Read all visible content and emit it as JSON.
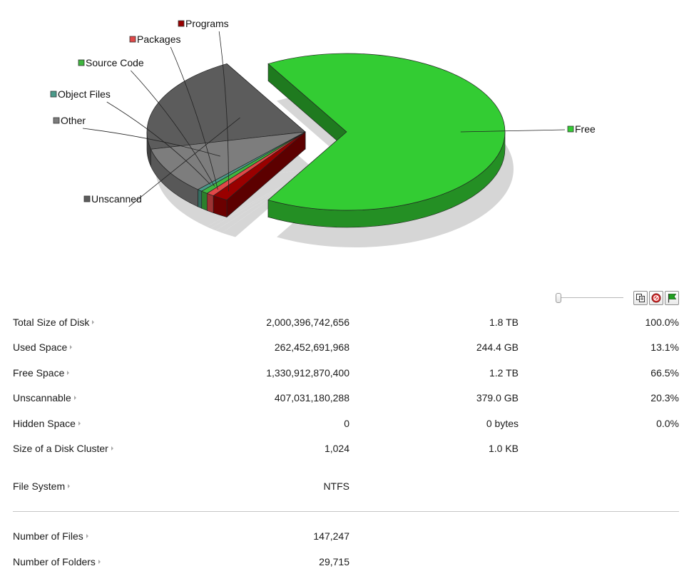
{
  "chart": {
    "type": "pie-3d",
    "slices": [
      {
        "name": "Free",
        "percent": 66.5,
        "color": "#33cc33",
        "exploded": true
      },
      {
        "name": "Unscanned",
        "percent": 20.3,
        "color": "#5c5c5c"
      },
      {
        "name": "Other",
        "percent": 9.6,
        "color": "#7d7d7d"
      },
      {
        "name": "Object Files",
        "percent": 0.5,
        "color": "#4a9a8a"
      },
      {
        "name": "Source Code",
        "percent": 0.7,
        "color": "#3fb63f"
      },
      {
        "name": "Packages",
        "percent": 0.8,
        "color": "#e04848"
      },
      {
        "name": "Programs",
        "percent": 1.6,
        "color": "#990000"
      }
    ]
  },
  "toolbar": {
    "zoom_slider": 0,
    "buttons": [
      "copy-icon",
      "stop-icon",
      "flag-icon"
    ]
  },
  "stats": {
    "rows": [
      {
        "label": "Total Size of Disk",
        "bytes": "2,000,396,742,656",
        "human": "1.8 TB",
        "percent": "100.0%"
      },
      {
        "label": "Used Space",
        "bytes": "262,452,691,968",
        "human": "244.4 GB",
        "percent": "13.1%"
      },
      {
        "label": "Free Space",
        "bytes": "1,330,912,870,400",
        "human": "1.2 TB",
        "percent": "66.5%"
      },
      {
        "label": "Unscannable",
        "bytes": "407,031,180,288",
        "human": "379.0 GB",
        "percent": "20.3%"
      },
      {
        "label": "Hidden Space",
        "bytes": "0",
        "human": "0 bytes",
        "percent": "0.0%"
      },
      {
        "label": "Size of a Disk Cluster",
        "bytes": "1,024",
        "human": "1.0 KB",
        "percent": ""
      }
    ],
    "filesystem": {
      "label": "File System",
      "value": "NTFS"
    },
    "counts": [
      {
        "label": "Number of Files",
        "value": "147,247"
      },
      {
        "label": "Number of Folders",
        "value": "29,715"
      }
    ]
  }
}
